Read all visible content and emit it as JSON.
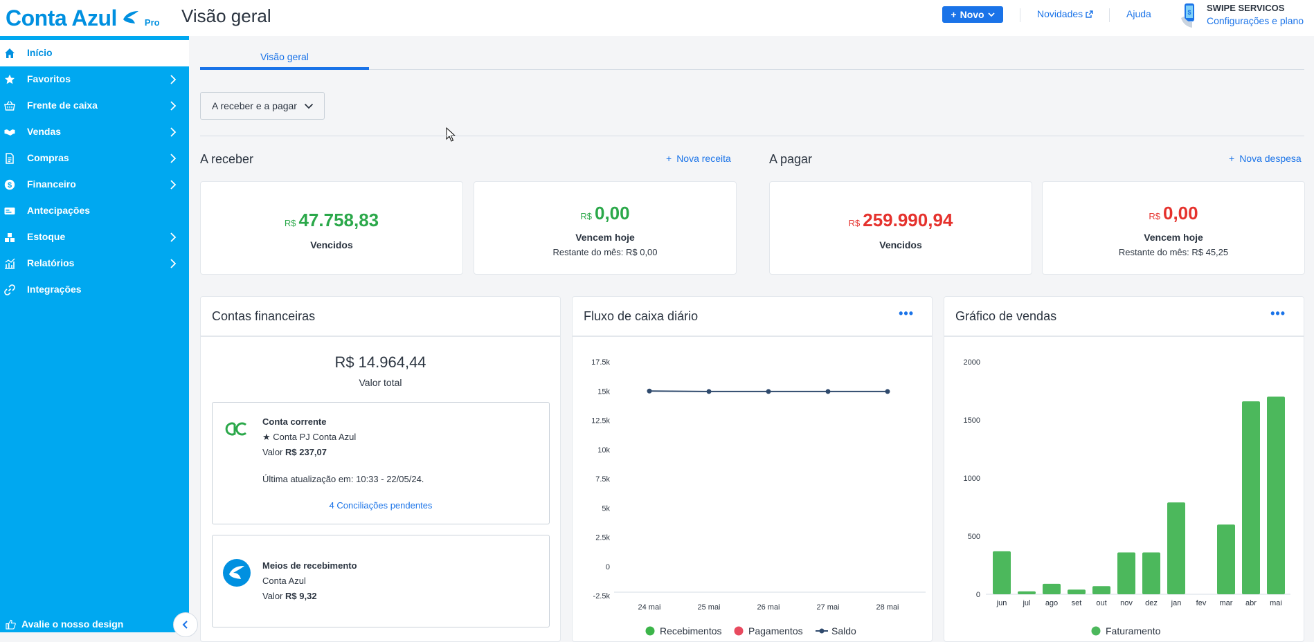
{
  "header": {
    "logo_text": "Conta Azul",
    "logo_badge": "Pro",
    "page_title": "Visão geral",
    "new_button": "Novo",
    "news_link": "Novidades",
    "help_link": "Ajuda",
    "company_name": "SWIPE SERVICOS",
    "settings_link": "Configurações e plano"
  },
  "sidebar": {
    "items": [
      {
        "label": "Início",
        "icon": "home-icon",
        "active": true
      },
      {
        "label": "Favoritos",
        "icon": "star-icon"
      },
      {
        "label": "Frente de caixa",
        "icon": "basket-icon"
      },
      {
        "label": "Vendas",
        "icon": "handshake-icon"
      },
      {
        "label": "Compras",
        "icon": "document-icon"
      },
      {
        "label": "Financeiro",
        "icon": "money-icon"
      },
      {
        "label": "Antecipações",
        "icon": "card-icon"
      },
      {
        "label": "Estoque",
        "icon": "boxes-icon"
      },
      {
        "label": "Relatórios",
        "icon": "chart-icon"
      },
      {
        "label": "Integrações",
        "icon": "link-icon"
      }
    ],
    "feedback": "Avalie o nosso design"
  },
  "tabs": [
    {
      "label": "Visão geral"
    }
  ],
  "filter": {
    "label": "A receber e a pagar"
  },
  "receivable": {
    "title": "A receber",
    "action": "Nova receita",
    "currency": "R$",
    "overdue": {
      "value": "47.758,83",
      "label": "Vencidos"
    },
    "today": {
      "value": "0,00",
      "label": "Vencem hoje",
      "rest": "Restante do mês: R$ 0,00"
    }
  },
  "payable": {
    "title": "A pagar",
    "action": "Nova despesa",
    "currency": "R$",
    "overdue": {
      "value": "259.990,94",
      "label": "Vencidos"
    },
    "today": {
      "value": "0,00",
      "label": "Vencem hoje",
      "rest": "Restante do mês: R$ 45,25"
    }
  },
  "accounts": {
    "title": "Contas financeiras",
    "total_value": "R$ 14.964,44",
    "total_label": "Valor total",
    "items": [
      {
        "type": "Conta corrente",
        "name": "Conta PJ Conta Azul",
        "value_label": "Valor",
        "value": "R$ 237,07",
        "updated": "Última atualização em: 10:33 - 22/05/24.",
        "link": "4 Conciliações pendentes"
      },
      {
        "type": "Meios de recebimento",
        "name": "Conta Azul",
        "value_label": "Valor",
        "value": "R$ 9,32"
      }
    ]
  },
  "cashflow": {
    "title": "Fluxo de caixa diário",
    "more": "•••"
  },
  "sales": {
    "title": "Gráfico de vendas",
    "more": "•••"
  },
  "chart_data": [
    {
      "type": "line",
      "title": "Fluxo de caixa diário",
      "x": [
        "24 mai",
        "25 mai",
        "26 mai",
        "27 mai",
        "28 mai"
      ],
      "y_ticks": [
        "17.5k",
        "15k",
        "12.5k",
        "10k",
        "7.5k",
        "5k",
        "2.5k",
        "0",
        "-2.5k"
      ],
      "ylim": [
        -2500,
        17500
      ],
      "series": [
        {
          "name": "Recebimentos",
          "color": "#3cb54a",
          "values": [
            0,
            0,
            0,
            0,
            0
          ]
        },
        {
          "name": "Pagamentos",
          "color": "#e84a5f",
          "values": [
            0,
            0,
            0,
            0,
            0
          ]
        },
        {
          "name": "Saldo",
          "color": "#2f4a6d",
          "values": [
            15000,
            14960,
            14960,
            14960,
            14960
          ]
        }
      ],
      "legend": "bottom"
    },
    {
      "type": "bar",
      "title": "Gráfico de vendas",
      "categories": [
        "jun",
        "jul",
        "ago",
        "set",
        "out",
        "nov",
        "dez",
        "jan",
        "fev",
        "mar",
        "abr",
        "mai"
      ],
      "y_ticks": [
        "2000",
        "1500",
        "1000",
        "500",
        "0"
      ],
      "ylim": [
        0,
        2000
      ],
      "series": [
        {
          "name": "Faturamento",
          "color": "#4cb85c",
          "values": [
            370,
            25,
            90,
            40,
            70,
            360,
            360,
            790,
            0,
            600,
            1660,
            1700
          ]
        }
      ],
      "legend": "bottom"
    }
  ]
}
